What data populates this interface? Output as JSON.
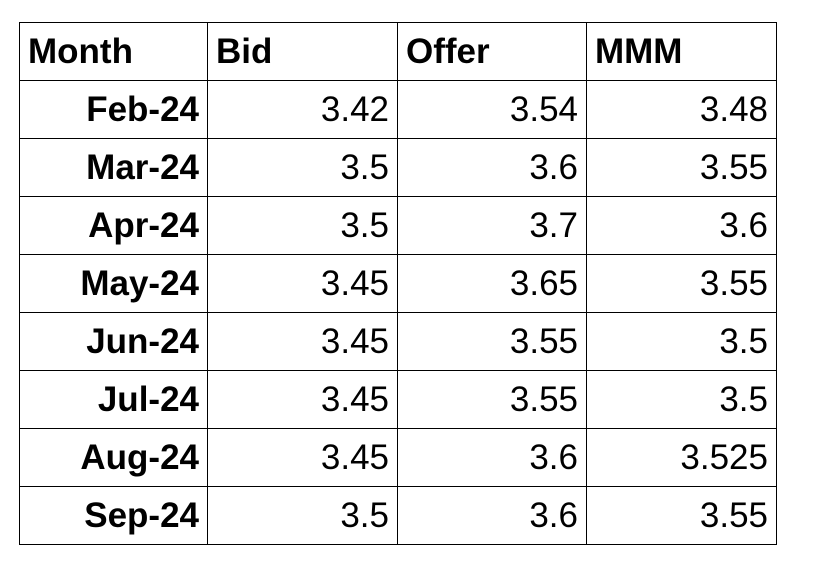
{
  "table": {
    "headers": {
      "month": "Month",
      "bid": "Bid",
      "offer": "Offer",
      "mmm": "MMM"
    },
    "rows": [
      {
        "month": "Feb-24",
        "bid": "3.42",
        "offer": "3.54",
        "mmm": "3.48"
      },
      {
        "month": "Mar-24",
        "bid": "3.5",
        "offer": "3.6",
        "mmm": "3.55"
      },
      {
        "month": "Apr-24",
        "bid": "3.5",
        "offer": "3.7",
        "mmm": "3.6"
      },
      {
        "month": "May-24",
        "bid": "3.45",
        "offer": "3.65",
        "mmm": "3.55"
      },
      {
        "month": "Jun-24",
        "bid": "3.45",
        "offer": "3.55",
        "mmm": "3.5"
      },
      {
        "month": "Jul-24",
        "bid": "3.45",
        "offer": "3.55",
        "mmm": "3.5"
      },
      {
        "month": "Aug-24",
        "bid": "3.45",
        "offer": "3.6",
        "mmm": "3.525"
      },
      {
        "month": "Sep-24",
        "bid": "3.5",
        "offer": "3.6",
        "mmm": "3.55"
      }
    ]
  }
}
